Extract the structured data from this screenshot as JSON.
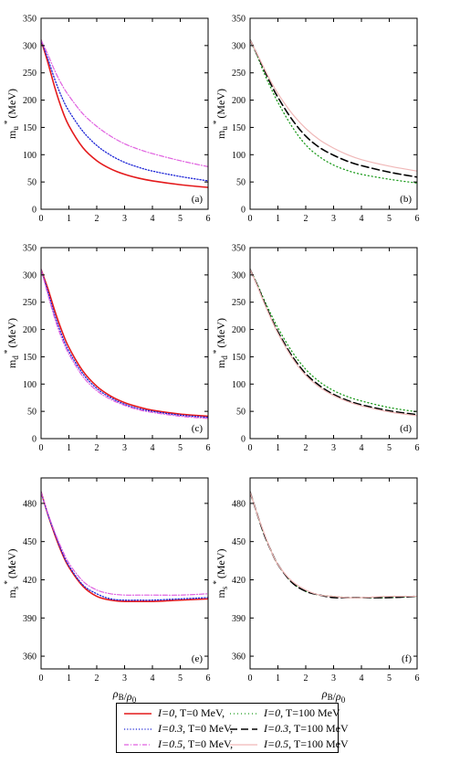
{
  "chart_data": [
    {
      "id": "a",
      "type": "line",
      "panel_label": "(a)",
      "ylabel_main": "m",
      "ylabel_sub": "u",
      "ylabel_sup": "*",
      "ylabel_unit": "(MeV)",
      "xlabel": "",
      "xlim": [
        0,
        6
      ],
      "ylim": [
        0,
        350
      ],
      "xticks": [
        0,
        1,
        2,
        3,
        4,
        5,
        6
      ],
      "yticks": [
        0,
        50,
        100,
        150,
        200,
        250,
        300,
        350
      ],
      "x": [
        0,
        0.25,
        0.5,
        0.75,
        1,
        1.5,
        2,
        2.5,
        3,
        3.5,
        4,
        5,
        6
      ],
      "series": [
        {
          "key": "s1",
          "values": [
            310,
            268,
            222,
            183,
            153,
            113,
            89,
            74,
            64,
            57,
            52,
            45,
            40
          ]
        },
        {
          "key": "s3",
          "values": [
            310,
            275,
            237,
            205,
            180,
            143,
            117,
            99,
            86,
            77,
            70,
            60,
            52
          ]
        },
        {
          "key": "s5",
          "values": [
            310,
            283,
            253,
            228,
            208,
            175,
            152,
            134,
            120,
            110,
            102,
            89,
            78
          ]
        }
      ]
    },
    {
      "id": "b",
      "type": "line",
      "panel_label": "(b)",
      "ylabel_main": "m",
      "ylabel_sub": "u",
      "ylabel_sup": "*",
      "ylabel_unit": "(MeV)",
      "xlabel": "",
      "xlim": [
        0,
        6
      ],
      "ylim": [
        0,
        350
      ],
      "xticks": [
        0,
        1,
        2,
        3,
        4,
        5,
        6
      ],
      "yticks": [
        0,
        50,
        100,
        150,
        200,
        250,
        300,
        350
      ],
      "x": [
        0,
        0.25,
        0.5,
        0.75,
        1,
        1.5,
        2,
        2.5,
        3,
        3.5,
        4,
        5,
        6
      ],
      "series": [
        {
          "key": "s2",
          "values": [
            310,
            282,
            250,
            222,
            196,
            152,
            118,
            96,
            81,
            71,
            64,
            55,
            48
          ]
        },
        {
          "key": "s4",
          "values": [
            310,
            284,
            256,
            229,
            205,
            165,
            134,
            113,
            99,
            88,
            80,
            68,
            59
          ]
        },
        {
          "key": "s6",
          "values": [
            310,
            285,
            259,
            234,
            212,
            176,
            148,
            127,
            112,
            100,
            91,
            79,
            70
          ]
        }
      ]
    },
    {
      "id": "c",
      "type": "line",
      "panel_label": "(c)",
      "ylabel_main": "m",
      "ylabel_sub": "d",
      "ylabel_sup": "*",
      "ylabel_unit": "(MeV)",
      "xlabel": "",
      "xlim": [
        0,
        6
      ],
      "ylim": [
        0,
        350
      ],
      "xticks": [
        0,
        1,
        2,
        3,
        4,
        5,
        6
      ],
      "yticks": [
        0,
        50,
        100,
        150,
        200,
        250,
        300,
        350
      ],
      "x": [
        0,
        0.25,
        0.5,
        0.75,
        1,
        1.5,
        2,
        2.5,
        3,
        3.5,
        4,
        5,
        6
      ],
      "series": [
        {
          "key": "s1",
          "values": [
            310,
            274,
            233,
            197,
            167,
            124,
            96,
            78,
            66,
            58,
            52,
            45,
            41
          ]
        },
        {
          "key": "s3",
          "values": [
            310,
            268,
            225,
            189,
            160,
            119,
            92,
            75,
            63,
            55,
            50,
            43,
            39
          ]
        },
        {
          "key": "s5",
          "values": [
            310,
            263,
            219,
            183,
            155,
            114,
            88,
            72,
            61,
            53,
            48,
            41,
            37
          ]
        }
      ]
    },
    {
      "id": "d",
      "type": "line",
      "panel_label": "(d)",
      "ylabel_main": "m",
      "ylabel_sub": "d",
      "ylabel_sup": "*",
      "ylabel_unit": "(MeV)",
      "xlabel": "",
      "xlim": [
        0,
        6
      ],
      "ylim": [
        0,
        350
      ],
      "xticks": [
        0,
        1,
        2,
        3,
        4,
        5,
        6
      ],
      "yticks": [
        0,
        50,
        100,
        150,
        200,
        250,
        300,
        350
      ],
      "x": [
        0,
        0.25,
        0.5,
        0.75,
        1,
        1.5,
        2,
        2.5,
        3,
        3.5,
        4,
        5,
        6
      ],
      "series": [
        {
          "key": "s2",
          "values": [
            310,
            284,
            255,
            228,
            203,
            160,
            127,
            104,
            88,
            77,
            69,
            57,
            49
          ]
        },
        {
          "key": "s4",
          "values": [
            310,
            282,
            251,
            222,
            196,
            152,
            119,
            97,
            81,
            70,
            62,
            51,
            44
          ]
        },
        {
          "key": "s6",
          "values": [
            310,
            281,
            249,
            220,
            193,
            149,
            116,
            94,
            79,
            68,
            60,
            49,
            42
          ]
        }
      ]
    },
    {
      "id": "e",
      "type": "line",
      "panel_label": "(e)",
      "ylabel_main": "m",
      "ylabel_sub": "s",
      "ylabel_sup": "*",
      "ylabel_unit": "(MeV)",
      "xlabel": "ρB/ρ0",
      "xlim": [
        0,
        6
      ],
      "ylim": [
        350,
        500
      ],
      "xticks": [
        0,
        1,
        2,
        3,
        4,
        5,
        6
      ],
      "yticks": [
        360,
        390,
        420,
        450,
        480
      ],
      "x": [
        0,
        0.25,
        0.5,
        0.75,
        1,
        1.5,
        2,
        2.5,
        3,
        3.5,
        4,
        5,
        6
      ],
      "series": [
        {
          "key": "s1",
          "values": [
            489,
            471,
            455,
            441,
            430,
            415,
            407,
            404,
            403,
            403,
            403,
            404,
            405
          ]
        },
        {
          "key": "s3",
          "values": [
            489,
            471,
            456,
            442,
            431,
            416,
            409,
            405,
            404,
            404,
            404,
            405,
            406
          ]
        },
        {
          "key": "s5",
          "values": [
            489,
            472,
            457,
            444,
            433,
            419,
            412,
            409,
            408,
            408,
            408,
            408,
            409
          ]
        }
      ]
    },
    {
      "id": "f",
      "type": "line",
      "panel_label": "(f)",
      "ylabel_main": "m",
      "ylabel_sub": "s",
      "ylabel_sup": "*",
      "ylabel_unit": "(MeV)",
      "xlabel": "ρB/ρ0",
      "xlim": [
        0,
        6
      ],
      "ylim": [
        350,
        500
      ],
      "xticks": [
        0,
        1,
        2,
        3,
        4,
        5,
        6
      ],
      "yticks": [
        360,
        390,
        420,
        450,
        480
      ],
      "x": [
        0,
        0.25,
        0.5,
        0.75,
        1,
        1.5,
        2,
        2.5,
        3,
        3.5,
        4,
        5,
        6
      ],
      "series": [
        {
          "key": "s2",
          "values": [
            489,
            472,
            456,
            443,
            432,
            418,
            411,
            408,
            407,
            406,
            406,
            406,
            407
          ]
        },
        {
          "key": "s4",
          "values": [
            489,
            472,
            456,
            443,
            432,
            418,
            411,
            408,
            406,
            406,
            406,
            406,
            407
          ]
        },
        {
          "key": "s6",
          "values": [
            489,
            472,
            457,
            443,
            432,
            419,
            412,
            408,
            407,
            406,
            406,
            407,
            407
          ]
        }
      ]
    }
  ],
  "series_styles": {
    "s1": {
      "color": "#e41a1c",
      "dash": "",
      "width": 1.6
    },
    "s2": {
      "color": "#1a9a1a",
      "dash": "1 3",
      "width": 1.3
    },
    "s3": {
      "color": "#1c24d6",
      "dash": "1.2 2",
      "width": 1.3
    },
    "s4": {
      "color": "#000000",
      "dash": "8 4",
      "width": 1.6
    },
    "s5": {
      "color": "#e061e0",
      "dash": "5 2 1 2",
      "width": 1.2
    },
    "s6": {
      "color": "#f0b8b8",
      "dash": "",
      "width": 1.2
    }
  },
  "legend": [
    {
      "key": "s1",
      "italic": "I=0",
      "text": ", T=0 MeV,"
    },
    {
      "key": "s2",
      "italic": "I=0",
      "text": ", T=100 MeV"
    },
    {
      "key": "s3",
      "italic": "I=0.3",
      "text": ", T=0 MeV,"
    },
    {
      "key": "s4",
      "italic": "I=0.3",
      "text": ", T=100 MeV"
    },
    {
      "key": "s5",
      "italic": "I=0.5",
      "text": ", T=0 MeV,"
    },
    {
      "key": "s6",
      "italic": "I=0.5",
      "text": ", T=100 MeV"
    }
  ]
}
